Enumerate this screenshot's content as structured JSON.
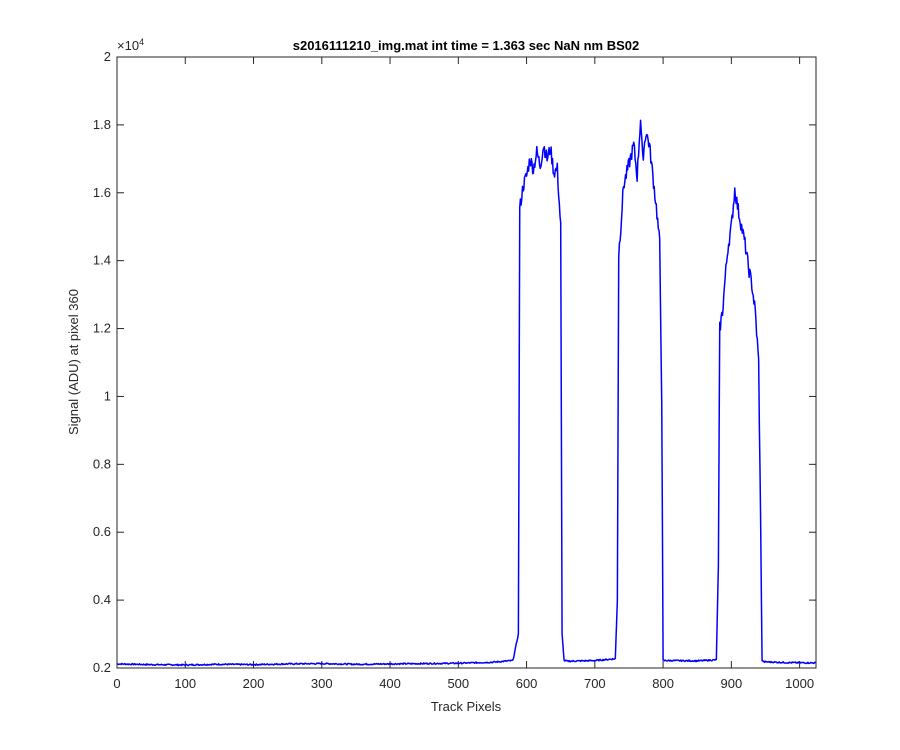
{
  "chart_data": {
    "type": "line",
    "title": "s2016111210_img.mat int time = 1.363 sec  NaN nm BS02",
    "xlabel": "Track Pixels",
    "ylabel": "Signal (ADU) at pixel 360",
    "xlim": [
      0,
      1024
    ],
    "ylim": [
      0.2,
      2.0
    ],
    "y_exponent_label": "×10",
    "y_exponent_power": "4",
    "x_ticks": [
      "0",
      "100",
      "200",
      "300",
      "400",
      "500",
      "600",
      "700",
      "800",
      "900",
      "1000"
    ],
    "y_ticks": [
      "0.2",
      "0.4",
      "0.6",
      "0.8",
      "1",
      "1.2",
      "1.4",
      "1.6",
      "1.8",
      "2"
    ],
    "line_color": "#0000ff",
    "grid": false,
    "series": [
      {
        "x": [
          0,
          50,
          100,
          150,
          200,
          250,
          300,
          350,
          400,
          450,
          500,
          550,
          580,
          588,
          590,
          592,
          595,
          600,
          605,
          610,
          615,
          620,
          625,
          630,
          635,
          640,
          645,
          650,
          652,
          655,
          660,
          700,
          730,
          733,
          735,
          738,
          742,
          747,
          752,
          757,
          762,
          767,
          770,
          775,
          780,
          785,
          790,
          795,
          798,
          800,
          805,
          850,
          878,
          881,
          883,
          887,
          891,
          895,
          900,
          905,
          910,
          915,
          920,
          925,
          930,
          935,
          940,
          943,
          945,
          948,
          952,
          980,
          1024
        ],
        "y": [
          0.212,
          0.21,
          0.209,
          0.211,
          0.21,
          0.212,
          0.213,
          0.211,
          0.212,
          0.213,
          0.214,
          0.217,
          0.222,
          0.3,
          1.55,
          1.58,
          1.62,
          1.65,
          1.7,
          1.67,
          1.72,
          1.68,
          1.74,
          1.7,
          1.73,
          1.66,
          1.67,
          1.5,
          0.3,
          0.222,
          0.22,
          0.222,
          0.227,
          0.4,
          1.42,
          1.5,
          1.62,
          1.66,
          1.7,
          1.74,
          1.65,
          1.82,
          1.7,
          1.78,
          1.74,
          1.65,
          1.56,
          1.45,
          1.0,
          0.222,
          0.222,
          0.221,
          0.224,
          0.5,
          1.2,
          1.25,
          1.35,
          1.44,
          1.5,
          1.61,
          1.55,
          1.5,
          1.45,
          1.38,
          1.33,
          1.25,
          1.1,
          0.6,
          0.222,
          0.218,
          0.218,
          0.216,
          0.215
        ]
      }
    ]
  }
}
